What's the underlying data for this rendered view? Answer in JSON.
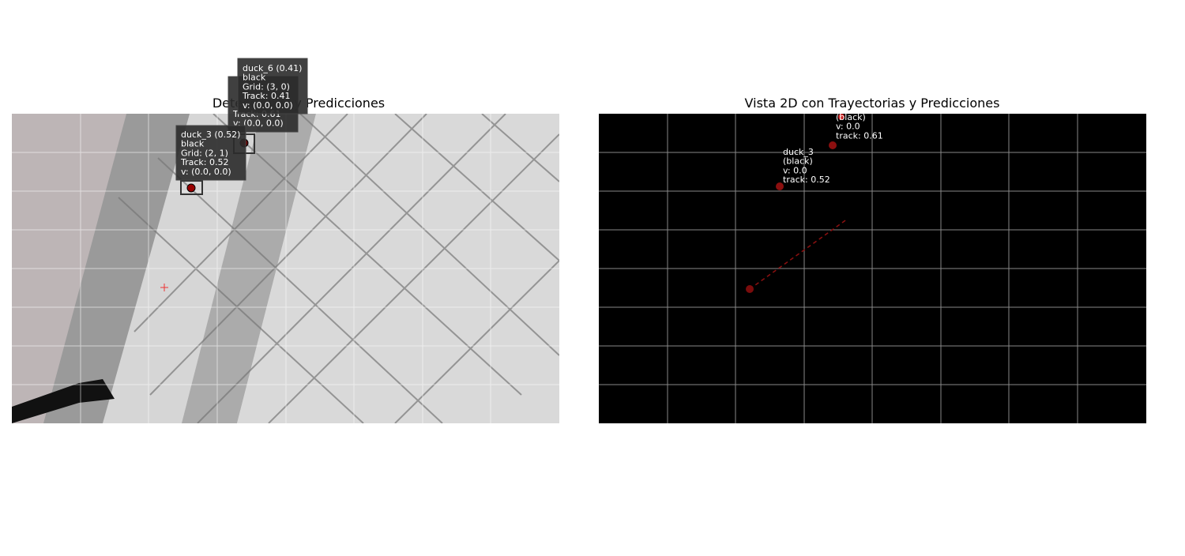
{
  "left_panel": {
    "title": "Detecciones y Predicciones",
    "labels": [
      {
        "lines": [
          "Track: 0.61",
          "v: (0.0, 0.0)"
        ]
      },
      {
        "lines": [
          "duck_6 (0.41)",
          "black",
          "Grid: (3, 0)",
          "Track: 0.41",
          "v: (0.0, 0.0)"
        ]
      },
      {
        "lines": [
          "duck_3 (0.52)",
          "black",
          "Grid: (2, 1)",
          "Track: 0.52",
          "v: (0.0, 0.0)"
        ]
      }
    ]
  },
  "right_panel": {
    "title": "Vista 2D con Trayectorias y Predicciones",
    "labels": [
      {
        "lines": [
          "(black)",
          "v: 0.0",
          "track: 0.61"
        ]
      },
      {
        "lines": [
          "duck_3",
          "(black)",
          "v: 0.0",
          "track: 0.52"
        ]
      }
    ]
  }
}
